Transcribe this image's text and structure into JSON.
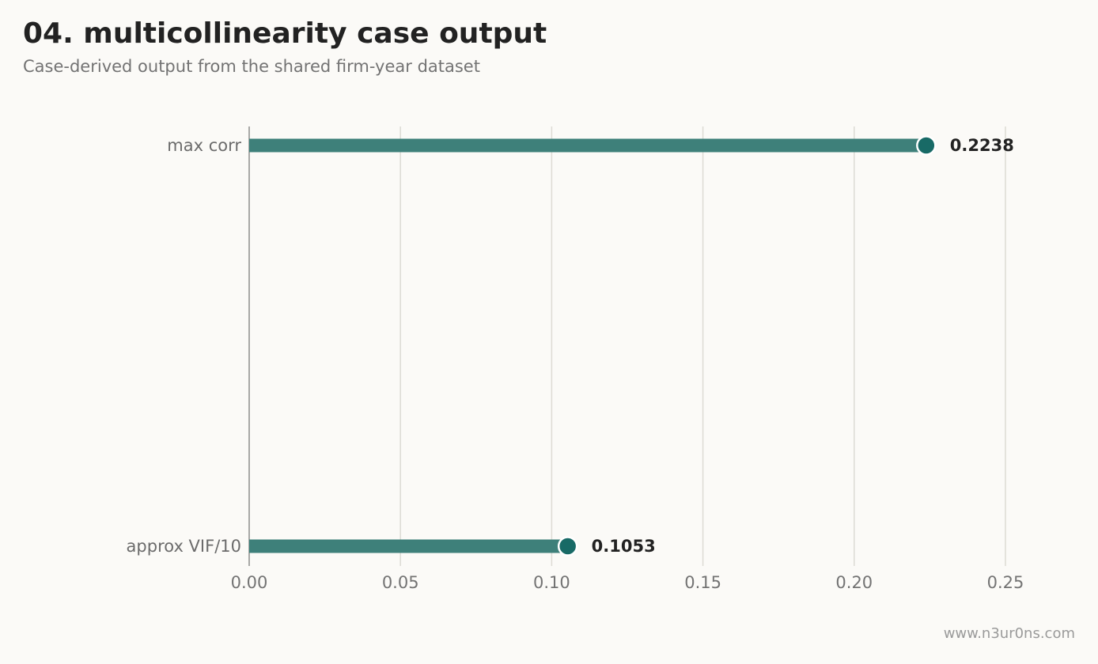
{
  "header": {
    "title": "04. multicollinearity case output",
    "subtitle": "Case-derived output from the shared firm-year dataset"
  },
  "footer": {
    "watermark": "www.n3ur0ns.com"
  },
  "colors": {
    "bar": "#3e807a",
    "dot": "#186a66",
    "grid": "#dddbd4",
    "axis": "#8c8c8c",
    "background": "#fbfaf7"
  },
  "chart_data": {
    "type": "bar",
    "orientation": "horizontal",
    "categories": [
      "max corr",
      "approx VIF/10"
    ],
    "values": [
      0.2238,
      0.1053
    ],
    "value_labels": [
      "0.2238",
      "0.1053"
    ],
    "xlim": [
      0,
      0.25
    ],
    "xticks": [
      0.0,
      0.05,
      0.1,
      0.15,
      0.2,
      0.25
    ],
    "xtick_labels": [
      "0.00",
      "0.05",
      "0.10",
      "0.15",
      "0.20",
      "0.25"
    ],
    "grid": "vertical",
    "xlabel": "",
    "ylabel": ""
  }
}
